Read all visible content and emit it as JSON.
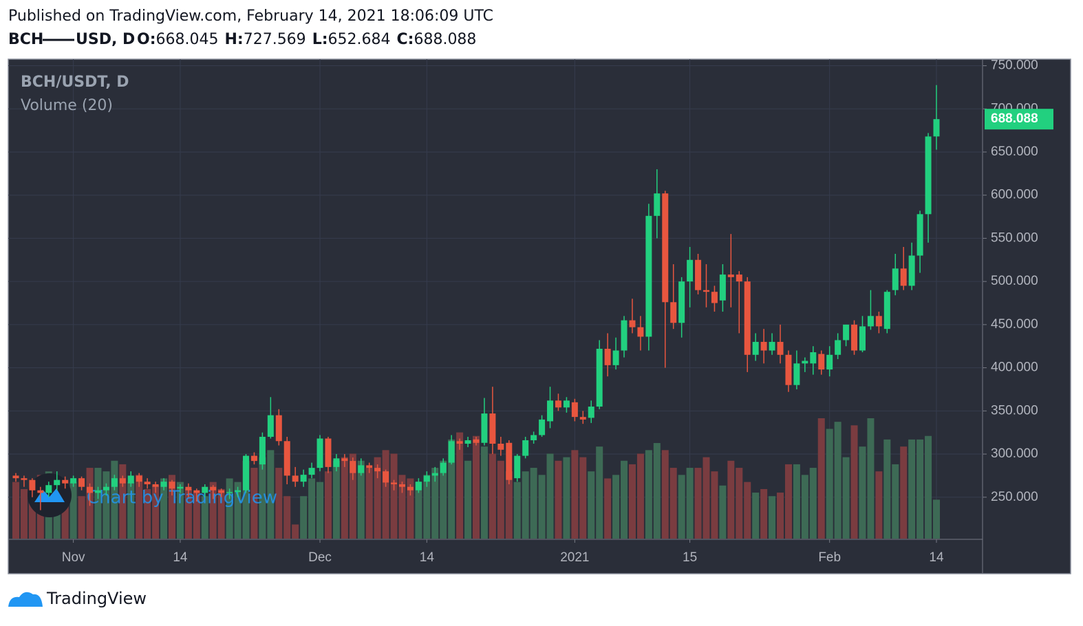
{
  "published": "Published on TradingView.com, February 14, 2021 18:06:09 UTC",
  "symbol": "BCH",
  "quote": "USD, D",
  "ohlc_labels": [
    "O:",
    "H:",
    "L:",
    "C:"
  ],
  "pane_title": "BCH/USDT, D",
  "indicator": "Volume (20)",
  "watermark": "Chart by TradingView",
  "brand": "TradingView",
  "chart_data": {
    "type": "candlestick",
    "categories": [
      null,
      null,
      null,
      null,
      null,
      null,
      null,
      "Nov",
      null,
      null,
      null,
      null,
      null,
      null,
      null,
      null,
      null,
      null,
      null,
      null,
      "14",
      null,
      null,
      null,
      null,
      null,
      null,
      null,
      null,
      null,
      null,
      null,
      null,
      null,
      null,
      null,
      null,
      "Dec",
      null,
      null,
      null,
      null,
      null,
      null,
      null,
      null,
      null,
      null,
      null,
      null,
      "14",
      null,
      null,
      null,
      null,
      null,
      null,
      null,
      null,
      null,
      null,
      null,
      null,
      null,
      null,
      null,
      null,
      null,
      "2021",
      null,
      null,
      null,
      null,
      null,
      null,
      null,
      null,
      null,
      null,
      null,
      null,
      null,
      "15",
      null,
      null,
      null,
      null,
      null,
      null,
      null,
      null,
      null,
      null,
      null,
      null,
      null,
      null,
      null,
      null,
      "Feb",
      null,
      null,
      null,
      null,
      null,
      null,
      null,
      null,
      null,
      null,
      null,
      null,
      "14"
    ],
    "open": [
      275,
      272,
      270,
      258,
      255,
      264,
      270,
      266,
      272,
      262,
      255,
      258,
      262,
      272,
      266,
      275,
      268,
      265,
      262,
      268,
      260,
      262,
      258,
      255,
      262,
      258,
      255,
      256,
      258,
      298,
      288,
      320,
      345,
      315,
      275,
      268,
      276,
      284,
      318,
      285,
      295,
      292,
      278,
      287,
      284,
      280,
      267,
      265,
      262,
      258,
      268,
      275,
      278,
      290,
      315,
      312,
      317,
      313,
      347,
      312,
      313,
      272,
      298,
      316,
      322,
      338,
      362,
      354,
      360,
      343,
      342,
      355,
      422,
      403,
      420,
      455,
      447,
      436,
      576,
      602,
      476,
      452,
      500,
      525,
      490,
      488,
      478,
      508,
      508,
      500,
      415,
      430,
      420,
      430,
      415,
      380,
      405,
      405,
      416,
      398,
      415,
      432,
      450,
      420,
      448,
      460,
      445,
      490,
      515,
      495,
      530,
      578,
      668.045
    ],
    "high": [
      278,
      275,
      272,
      262,
      268,
      280,
      274,
      275,
      274,
      266,
      262,
      266,
      276,
      275,
      280,
      278,
      272,
      268,
      272,
      270,
      265,
      266,
      260,
      265,
      264,
      260,
      260,
      262,
      300,
      302,
      325,
      366,
      352,
      320,
      285,
      282,
      290,
      322,
      320,
      300,
      300,
      296,
      295,
      290,
      288,
      282,
      270,
      268,
      265,
      272,
      280,
      285,
      295,
      322,
      318,
      320,
      320,
      365,
      378,
      320,
      316,
      300,
      320,
      326,
      345,
      378,
      370,
      366,
      364,
      350,
      362,
      432,
      440,
      435,
      460,
      480,
      460,
      590,
      630,
      605,
      520,
      505,
      540,
      532,
      520,
      495,
      520,
      555,
      512,
      505,
      440,
      445,
      440,
      450,
      420,
      420,
      412,
      425,
      420,
      425,
      440,
      450,
      455,
      460,
      490,
      465,
      490,
      532,
      540,
      545,
      582,
      672,
      727.569
    ],
    "low": [
      268,
      262,
      250,
      235,
      250,
      258,
      260,
      262,
      258,
      240,
      248,
      252,
      258,
      262,
      262,
      262,
      260,
      255,
      258,
      252,
      255,
      250,
      245,
      250,
      248,
      250,
      248,
      250,
      255,
      288,
      282,
      318,
      310,
      265,
      262,
      262,
      272,
      280,
      278,
      280,
      285,
      270,
      275,
      278,
      272,
      262,
      258,
      255,
      252,
      255,
      262,
      268,
      275,
      288,
      305,
      308,
      310,
      310,
      300,
      298,
      265,
      268,
      295,
      312,
      320,
      330,
      350,
      348,
      338,
      335,
      336,
      352,
      390,
      398,
      412,
      440,
      420,
      420,
      550,
      400,
      445,
      435,
      470,
      485,
      470,
      465,
      465,
      470,
      440,
      395,
      408,
      405,
      415,
      405,
      372,
      375,
      395,
      392,
      392,
      390,
      410,
      425,
      415,
      418,
      444,
      440,
      440,
      484,
      490,
      490,
      510,
      545,
      652.684
    ],
    "close": [
      272,
      270,
      258,
      255,
      264,
      270,
      266,
      272,
      262,
      255,
      258,
      262,
      272,
      266,
      275,
      268,
      265,
      262,
      268,
      260,
      262,
      258,
      255,
      262,
      258,
      255,
      256,
      258,
      298,
      292,
      320,
      345,
      315,
      275,
      268,
      276,
      284,
      318,
      285,
      295,
      292,
      278,
      287,
      284,
      280,
      267,
      265,
      262,
      258,
      268,
      275,
      278,
      290,
      315,
      312,
      316,
      313,
      347,
      312,
      305,
      270,
      298,
      316,
      322,
      340,
      362,
      354,
      362,
      343,
      340,
      355,
      422,
      403,
      420,
      455,
      447,
      436,
      576,
      602,
      476,
      452,
      500,
      525,
      490,
      488,
      475,
      508,
      505,
      500,
      415,
      430,
      420,
      430,
      415,
      380,
      405,
      408,
      418,
      398,
      415,
      432,
      450,
      420,
      448,
      460,
      448,
      488,
      515,
      495,
      530,
      578,
      668,
      688.088
    ],
    "volume": [
      80,
      70,
      60,
      90,
      95,
      85,
      70,
      80,
      60,
      100,
      100,
      95,
      110,
      105,
      80,
      90,
      70,
      75,
      85,
      90,
      80,
      70,
      65,
      60,
      80,
      70,
      85,
      80,
      110,
      100,
      115,
      125,
      100,
      60,
      20,
      60,
      85,
      80,
      95,
      110,
      115,
      120,
      110,
      100,
      115,
      125,
      120,
      90,
      85,
      80,
      90,
      100,
      110,
      140,
      150,
      110,
      145,
      130,
      120,
      110,
      95,
      80,
      95,
      100,
      90,
      120,
      110,
      115,
      125,
      115,
      95,
      130,
      85,
      90,
      110,
      105,
      120,
      125,
      135,
      125,
      100,
      90,
      100,
      100,
      115,
      95,
      75,
      110,
      100,
      80,
      65,
      70,
      60,
      65,
      105,
      105,
      90,
      100,
      170,
      155,
      165,
      115,
      160,
      130,
      170,
      95,
      140,
      105,
      130,
      140,
      140,
      145,
      55
    ],
    "ylim": [
      202,
      756
    ],
    "yticks": [
      {
        "value": 250,
        "label": "250.000"
      },
      {
        "value": 300,
        "label": "300.000"
      },
      {
        "value": 350,
        "label": "350.000"
      },
      {
        "value": 400,
        "label": "400.000"
      },
      {
        "value": 450,
        "label": "450.000"
      },
      {
        "value": 500,
        "label": "500.000"
      },
      {
        "value": 550,
        "label": "550.000"
      },
      {
        "value": 600,
        "label": "600.000"
      },
      {
        "value": 650,
        "label": "650.000"
      },
      {
        "value": 700,
        "label": "700.000"
      },
      {
        "value": 750,
        "label": "750.000"
      }
    ],
    "grid": true,
    "up_color": "#22d07f",
    "down_color": "#e8563f",
    "volume_up_color": "#3d6a55",
    "volume_down_color": "#7a3c40"
  }
}
